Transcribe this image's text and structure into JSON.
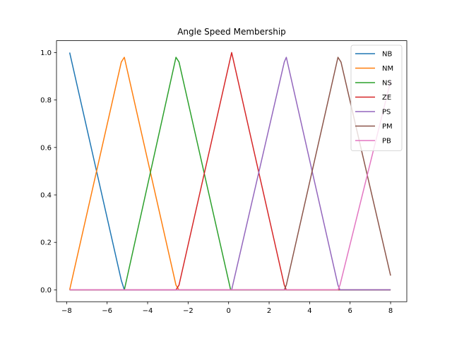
{
  "chart_data": {
    "type": "line",
    "title": "Angle Speed Membership",
    "xlabel": "",
    "ylabel": "",
    "xlim": [
      -8.5,
      8.8
    ],
    "ylim": [
      -0.05,
      1.05
    ],
    "xticks": [
      -8,
      -6,
      -4,
      -2,
      0,
      2,
      4,
      6,
      8
    ],
    "xtick_labels": [
      "−8",
      "−6",
      "−4",
      "−2",
      "0",
      "2",
      "4",
      "6",
      "8"
    ],
    "yticks": [
      0.0,
      0.2,
      0.4,
      0.6,
      0.8,
      1.0
    ],
    "ytick_labels": [
      "0.0",
      "0.2",
      "0.4",
      "0.6",
      "0.8",
      "1.0"
    ],
    "grid": false,
    "legend_position": "top-right",
    "series": [
      {
        "name": "NB",
        "color": "#1f77b4",
        "x": [
          -7.85,
          -5.3,
          -5.15,
          8.0
        ],
        "y": [
          1.0,
          0.04,
          0.0,
          0.0
        ]
      },
      {
        "name": "NM",
        "color": "#ff7f0e",
        "x": [
          -7.85,
          -5.3,
          -5.15,
          -2.6,
          -2.45,
          8.0
        ],
        "y": [
          0.0,
          0.96,
          0.98,
          0.02,
          0.0,
          0.0
        ]
      },
      {
        "name": "NS",
        "color": "#2ca02c",
        "x": [
          -7.85,
          -5.15,
          -2.6,
          -2.45,
          0.1,
          0.15,
          8.0
        ],
        "y": [
          0.0,
          0.0,
          0.98,
          0.96,
          0.0,
          0.0,
          0.0
        ]
      },
      {
        "name": "ZE",
        "color": "#d62728",
        "x": [
          -7.85,
          -2.6,
          -2.45,
          0.15,
          2.75,
          2.85,
          8.0
        ],
        "y": [
          0.0,
          0.0,
          0.02,
          1.0,
          0.02,
          0.0,
          0.0
        ]
      },
      {
        "name": "PS",
        "color": "#9467bd",
        "x": [
          -7.85,
          0.1,
          0.15,
          2.75,
          2.85,
          5.4,
          5.5,
          8.0
        ],
        "y": [
          0.0,
          0.0,
          0.0,
          0.96,
          0.98,
          0.02,
          0.0,
          0.0
        ]
      },
      {
        "name": "PM",
        "color": "#8c564b",
        "x": [
          -7.85,
          2.75,
          2.85,
          5.4,
          5.55,
          8.0
        ],
        "y": [
          0.0,
          0.0,
          0.02,
          0.98,
          0.96,
          0.06
        ]
      },
      {
        "name": "PB",
        "color": "#e377c2",
        "x": [
          -7.85,
          5.4,
          5.5,
          8.0
        ],
        "y": [
          0.0,
          0.0,
          0.02,
          0.88
        ]
      }
    ]
  }
}
